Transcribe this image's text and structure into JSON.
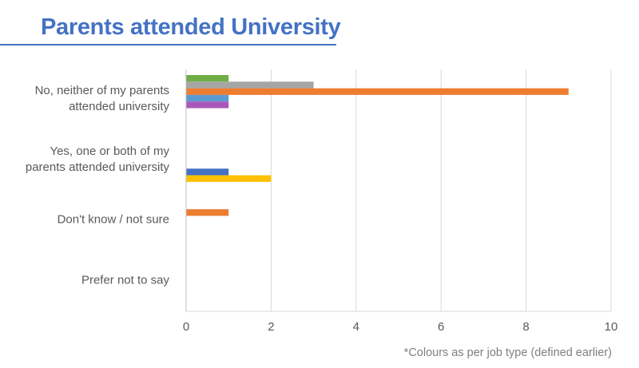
{
  "title": "Parents attended University",
  "footnote": "*Colours as per job type (defined earlier)",
  "colors": {
    "title": "#4472c4",
    "gridline": "#d9d9d9",
    "axis": "#bfbfbf",
    "text": "#595959"
  },
  "chart_data": {
    "type": "bar",
    "orientation": "horizontal",
    "title": "Parents attended University",
    "xlabel": "",
    "ylabel": "",
    "xlim": [
      0,
      10
    ],
    "x_ticks": [
      0,
      2,
      4,
      6,
      8,
      10
    ],
    "grid": true,
    "legend": "none",
    "categories": [
      "No, neither of my parents attended university",
      "Yes, one or both of my parents attended university",
      "Don't know / not sure",
      "Prefer not to say"
    ],
    "category_label_lines": [
      [
        "No, neither of my parents",
        "attended university"
      ],
      [
        "Yes, one or both of my",
        "parents attended university"
      ],
      [
        "Don't know / not sure"
      ],
      [
        "Prefer not to say"
      ]
    ],
    "series": [
      {
        "color": "#70ad47",
        "values": [
          1,
          0,
          0,
          0
        ]
      },
      {
        "color": "#a5a5a5",
        "values": [
          3,
          0,
          0,
          0
        ]
      },
      {
        "color": "#ed7d31",
        "values": [
          9,
          0,
          1,
          0
        ]
      },
      {
        "color": "#5b9bd5",
        "values": [
          1,
          0,
          0,
          0
        ]
      },
      {
        "color": "#a958b9",
        "values": [
          1,
          0,
          0,
          0
        ]
      },
      {
        "color": "#4472c4",
        "values": [
          0,
          1,
          0,
          0
        ]
      },
      {
        "color": "#ffc000",
        "values": [
          0,
          2,
          0,
          0
        ]
      }
    ]
  }
}
